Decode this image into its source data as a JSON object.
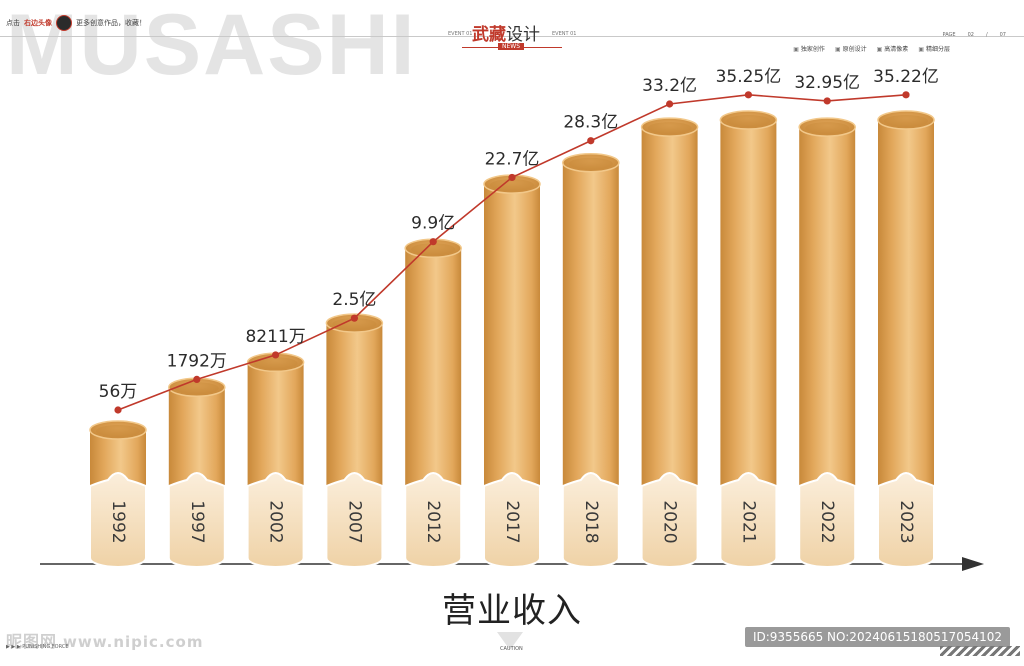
{
  "header": {
    "watermark": "MUSASHI",
    "promo_prefix": "点击",
    "promo_highlight": "右边头像",
    "promo_suffix": "更多创意作品，收藏！",
    "brand_bold": "武藏",
    "brand_light": "设计",
    "event_left": "EVENT 01",
    "event_right": "EVENT 01",
    "news": "NEWS",
    "page_label": "PAGE",
    "page_current": "02",
    "page_sep": "/",
    "page_total": "07",
    "features": [
      "独家创作",
      "原创设计",
      "高清像素",
      "精细分层"
    ]
  },
  "chart_data": {
    "type": "bar",
    "title": "营业收入",
    "categories": [
      "1992",
      "1997",
      "2002",
      "2007",
      "2012",
      "2017",
      "2018",
      "2020",
      "2021",
      "2022",
      "2023"
    ],
    "values": [
      56,
      1792,
      8211,
      25000,
      99000,
      227000,
      283000,
      332000,
      352500,
      329500,
      352200
    ],
    "unit": "万",
    "data_labels": [
      "56万",
      "1792万",
      "8211万",
      "2.5亿",
      "9.9亿",
      "22.7亿",
      "28.3亿",
      "33.2亿",
      "35.25亿",
      "32.95亿",
      "35.22亿"
    ],
    "bar_levels": [
      0.13,
      0.25,
      0.32,
      0.43,
      0.64,
      0.82,
      0.88,
      0.98,
      1.0,
      0.98,
      1.0
    ],
    "line_levels": [
      0.0,
      0.1,
      0.18,
      0.3,
      0.55,
      0.76,
      0.88,
      1.0,
      1.03,
      1.01,
      1.03
    ],
    "colors": {
      "bar_main": "#e2a75b",
      "bar_light": "#f2c88a",
      "bar_dark": "#c8893a",
      "bar_base_light": "#fbeedb",
      "bar_base": "#efd2a6",
      "line": "#c0392b",
      "axis": "#333333"
    }
  },
  "footer": {
    "logo_text": "昵图网",
    "site": "www.nipic.com",
    "left_small": "▶ ▶ ▶   PUNISHING FORCE",
    "caution": "CAUTION",
    "id_text": "ID:9355665 NO:20240615180517054102"
  }
}
